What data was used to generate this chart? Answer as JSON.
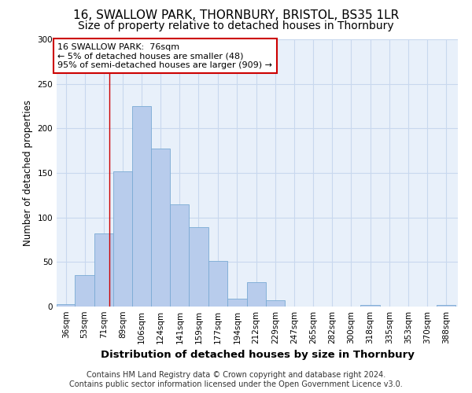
{
  "title_line1": "16, SWALLOW PARK, THORNBURY, BRISTOL, BS35 1LR",
  "title_line2": "Size of property relative to detached houses in Thornbury",
  "xlabel": "Distribution of detached houses by size in Thornbury",
  "ylabel": "Number of detached properties",
  "bar_color": "#b8ccec",
  "bar_edge_color": "#7aaad4",
  "categories": [
    "36sqm",
    "53sqm",
    "71sqm",
    "89sqm",
    "106sqm",
    "124sqm",
    "141sqm",
    "159sqm",
    "177sqm",
    "194sqm",
    "212sqm",
    "229sqm",
    "247sqm",
    "265sqm",
    "282sqm",
    "300sqm",
    "318sqm",
    "335sqm",
    "353sqm",
    "370sqm",
    "388sqm"
  ],
  "values": [
    3,
    35,
    82,
    152,
    225,
    177,
    115,
    89,
    51,
    9,
    27,
    7,
    0,
    0,
    0,
    0,
    2,
    0,
    0,
    0,
    2
  ],
  "bin_width": 17.5,
  "bar_starts": [
    27.5,
    44.5,
    62.0,
    79.5,
    97.0,
    114.5,
    132.0,
    149.5,
    167.0,
    185.0,
    202.5,
    220.0,
    237.5,
    255.0,
    272.5,
    290.0,
    307.5,
    325.0,
    342.5,
    360.0,
    377.5
  ],
  "xlim_left": 27.5,
  "xlim_right": 397.0,
  "red_line_x": 76,
  "annotation_text": "16 SWALLOW PARK:  76sqm\n← 5% of detached houses are smaller (48)\n95% of semi-detached houses are larger (909) →",
  "annotation_box_color": "#ffffff",
  "annotation_box_edge": "#cc0000",
  "ylim": [
    0,
    300
  ],
  "yticks": [
    0,
    50,
    100,
    150,
    200,
    250,
    300
  ],
  "grid_color": "#c8d8ee",
  "background_color": "#e8f0fa",
  "footer_line1": "Contains HM Land Registry data © Crown copyright and database right 2024.",
  "footer_line2": "Contains public sector information licensed under the Open Government Licence v3.0.",
  "title_fontsize": 11,
  "subtitle_fontsize": 10,
  "xlabel_fontsize": 9.5,
  "ylabel_fontsize": 8.5,
  "tick_fontsize": 7.5,
  "annotation_fontsize": 8,
  "footer_fontsize": 7
}
